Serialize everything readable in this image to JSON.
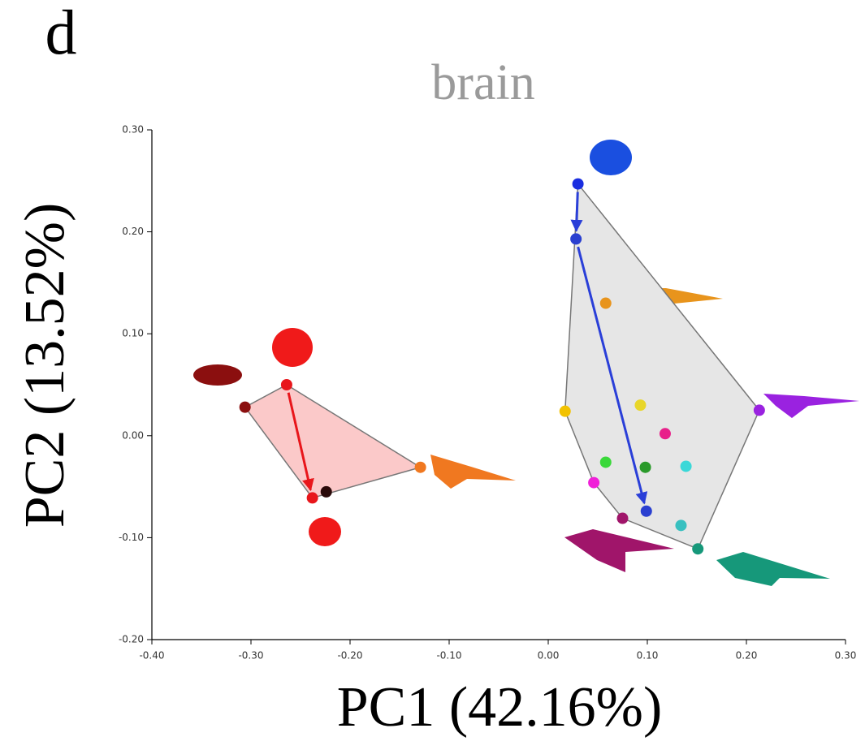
{
  "chart_data": {
    "type": "scatter",
    "panel_label": "d",
    "title": "brain",
    "x_label": "PC1 (42.16%)",
    "y_label": "PC2 (13.52%)",
    "xlim": [
      -0.4,
      0.3
    ],
    "ylim": [
      -0.2,
      0.3
    ],
    "xticks": [
      {
        "value": -0.4,
        "label": "-0.40"
      },
      {
        "value": -0.3,
        "label": "-0.30"
      },
      {
        "value": -0.2,
        "label": "-0.20"
      },
      {
        "value": -0.1,
        "label": "-0.10"
      },
      {
        "value": 0,
        "label": "0.00"
      },
      {
        "value": 0.1,
        "label": "0.10"
      },
      {
        "value": 0.2,
        "label": "0.20"
      },
      {
        "value": 0.3,
        "label": "0.30"
      }
    ],
    "yticks": [
      {
        "value": -0.2,
        "label": "-0.20"
      },
      {
        "value": -0.1,
        "label": "-0.10"
      },
      {
        "value": 0,
        "label": "0.00"
      },
      {
        "value": 0.1,
        "label": "0.10"
      },
      {
        "value": 0.2,
        "label": "0.20"
      },
      {
        "value": 0.3,
        "label": "0.30"
      }
    ],
    "groups": [
      {
        "fill": "#fbc9c9",
        "arrow_color": "#e8161b",
        "arrows": [
          [
            1,
            2
          ]
        ],
        "points": [
          {
            "x": -0.306,
            "y": 0.028,
            "color": "#8b0f0f"
          },
          {
            "x": -0.264,
            "y": 0.05,
            "color": "#e8161b"
          },
          {
            "x": -0.238,
            "y": -0.061,
            "color": "#e8161b"
          },
          {
            "x": -0.224,
            "y": -0.055,
            "color": "#2a0a0a"
          },
          {
            "x": -0.129,
            "y": -0.031,
            "color": "#f07820"
          }
        ]
      },
      {
        "fill": "#e6e6e6",
        "arrow_color": "#2a3fd8",
        "arrows": [
          [
            0,
            1
          ],
          [
            1,
            2
          ]
        ],
        "points": [
          {
            "x": 0.03,
            "y": 0.247,
            "color": "#1a2ee0"
          },
          {
            "x": 0.028,
            "y": 0.193,
            "color": "#2a3fd0"
          },
          {
            "x": 0.099,
            "y": -0.074,
            "color": "#2a3fd0"
          },
          {
            "x": 0.058,
            "y": 0.13,
            "color": "#e8941c"
          },
          {
            "x": 0.017,
            "y": 0.024,
            "color": "#f2c200"
          },
          {
            "x": 0.093,
            "y": 0.03,
            "color": "#e8d62a"
          },
          {
            "x": 0.213,
            "y": 0.025,
            "color": "#9a22e0"
          },
          {
            "x": 0.118,
            "y": 0.002,
            "color": "#e8208a"
          },
          {
            "x": 0.058,
            "y": -0.026,
            "color": "#3ad83a"
          },
          {
            "x": 0.098,
            "y": -0.031,
            "color": "#2a9a2a"
          },
          {
            "x": 0.139,
            "y": -0.03,
            "color": "#3ad8d8"
          },
          {
            "x": 0.046,
            "y": -0.046,
            "color": "#f020d8"
          },
          {
            "x": 0.075,
            "y": -0.081,
            "color": "#a0156a"
          },
          {
            "x": 0.134,
            "y": -0.088,
            "color": "#38c0c0"
          },
          {
            "x": 0.151,
            "y": -0.111,
            "color": "#16987a"
          }
        ]
      }
    ]
  }
}
